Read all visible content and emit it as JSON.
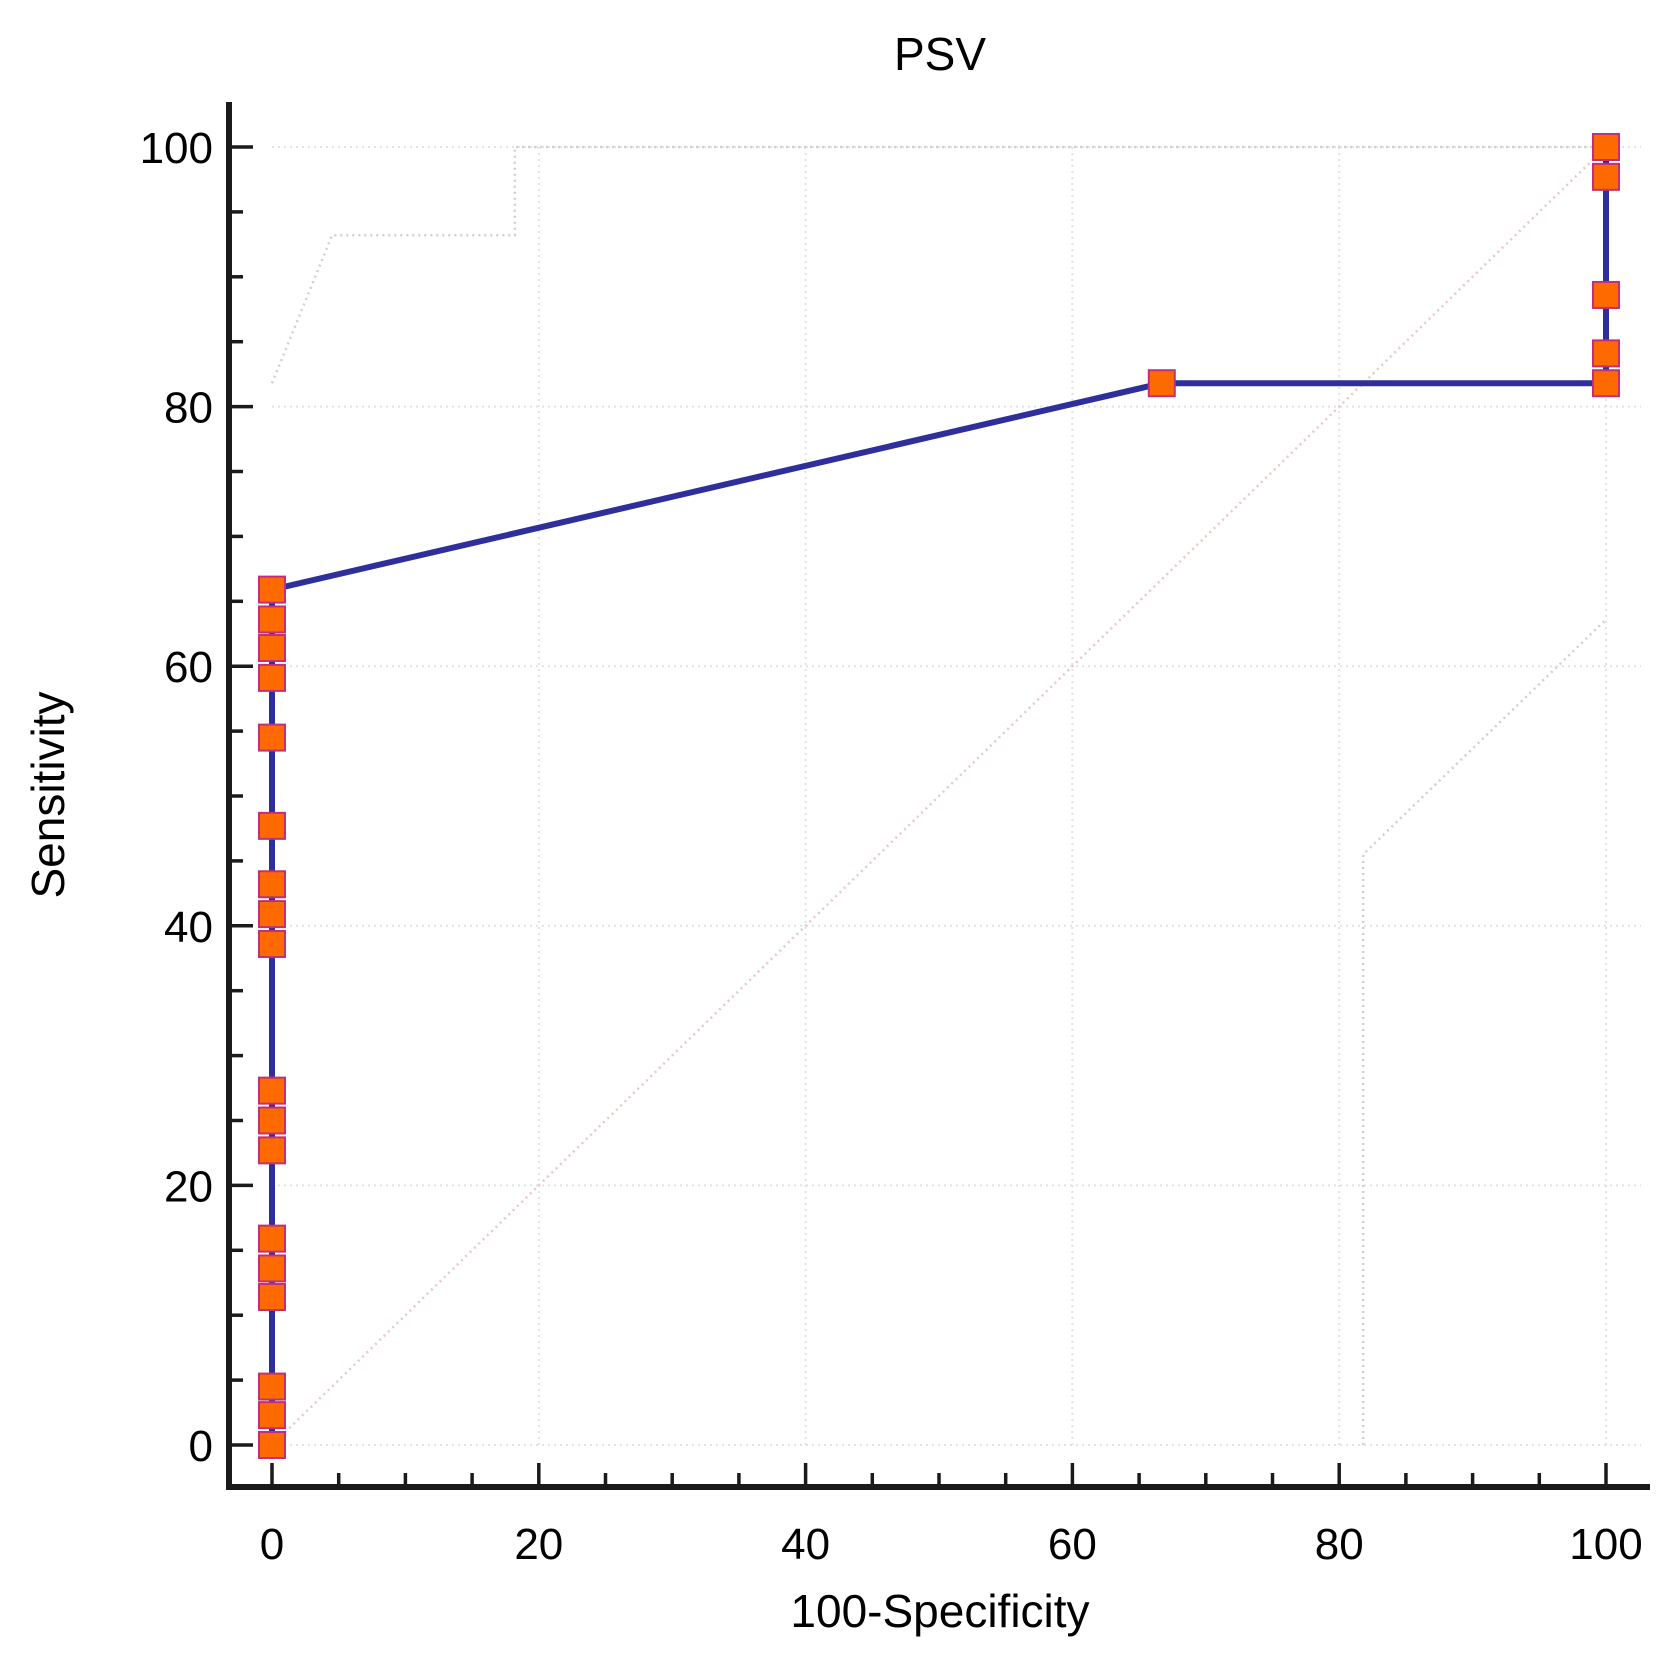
{
  "chart_data": {
    "type": "line",
    "title": "PSV",
    "xlabel": "100-Specificity",
    "ylabel": "Sensitivity",
    "xlim": [
      0,
      100
    ],
    "ylim": [
      0,
      100
    ],
    "x_ticks": [
      0,
      20,
      40,
      60,
      80,
      100
    ],
    "y_ticks": [
      0,
      20,
      40,
      60,
      80,
      100
    ],
    "x_tick_labels": [
      "0",
      "20",
      "40",
      "60",
      "80",
      "100"
    ],
    "y_tick_labels": [
      "0",
      "20",
      "40",
      "60",
      "80",
      "100"
    ],
    "grid": true,
    "legend": "none",
    "series": [
      {
        "name": "ROC curve",
        "x": [
          0,
          0,
          0,
          0,
          0,
          0,
          0,
          0,
          0,
          0,
          0,
          0,
          0,
          0,
          0,
          0,
          0,
          0,
          0,
          0,
          0,
          0,
          66.7,
          100,
          100,
          100,
          100,
          100,
          100
        ],
        "y": [
          0,
          2.3,
          4.5,
          11.4,
          13.6,
          15.9,
          22.7,
          25.0,
          27.3,
          38.6,
          40.9,
          43.2,
          47.7,
          54.5,
          59.1,
          61.4,
          63.6,
          65.9,
          65.9,
          65.9,
          65.9,
          65.9,
          81.8,
          81.8,
          84.1,
          88.6,
          97.7,
          100,
          100
        ],
        "marker_x": [
          0,
          0,
          0,
          0,
          0,
          0,
          0,
          0,
          0,
          0,
          0,
          0,
          0,
          0,
          0,
          0,
          0,
          0,
          66.7,
          100,
          100,
          100,
          100,
          100
        ],
        "marker_y": [
          0,
          2.3,
          4.5,
          11.4,
          13.6,
          15.9,
          22.7,
          25.0,
          27.3,
          38.6,
          40.9,
          43.2,
          47.7,
          54.5,
          59.1,
          61.4,
          63.6,
          65.9,
          81.8,
          81.8,
          84.1,
          88.6,
          97.7,
          100
        ],
        "line_color": "#2e2f9a",
        "marker_fill": "#ff6a00",
        "marker_edge": "#c0307a"
      },
      {
        "name": "upper confidence bound",
        "x": [
          0,
          4.5,
          18.2,
          18.2,
          100
        ],
        "y": [
          81.8,
          93.2,
          93.2,
          100,
          100
        ],
        "color": "#d0d0d0",
        "style": "dotted"
      },
      {
        "name": "lower confidence bound",
        "x": [
          81.8,
          81.8,
          100
        ],
        "y": [
          0,
          45.5,
          63.6
        ],
        "color": "#d0d0d0",
        "style": "dotted"
      },
      {
        "name": "reference diagonal",
        "x": [
          0,
          100
        ],
        "y": [
          0,
          100
        ],
        "color": "#e8c8c8",
        "style": "dotted"
      }
    ]
  }
}
